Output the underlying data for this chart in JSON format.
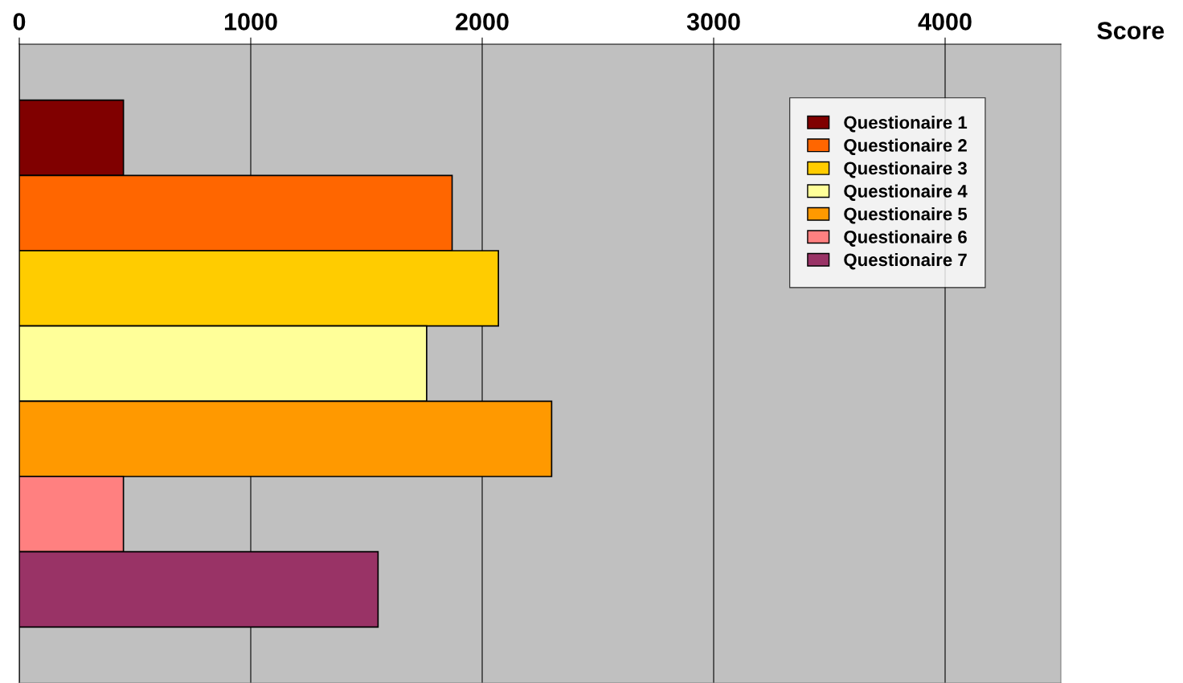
{
  "chart_data": {
    "type": "bar",
    "orientation": "horizontal",
    "xlabel": "Score",
    "categories": [
      null
    ],
    "series": [
      {
        "name": "Questionaire 1",
        "color": "#800000",
        "values": [
          450
        ]
      },
      {
        "name": "Questionaire 2",
        "color": "#ff6600",
        "values": [
          1870
        ]
      },
      {
        "name": "Questionaire 3",
        "color": "#ffcc00",
        "values": [
          2070
        ]
      },
      {
        "name": "Questionaire 4",
        "color": "#ffff99",
        "values": [
          1760
        ]
      },
      {
        "name": "Questionaire 5",
        "color": "#ff9900",
        "values": [
          2300
        ]
      },
      {
        "name": "Questionaire 6",
        "color": "#ff8080",
        "values": [
          450
        ]
      },
      {
        "name": "Questionaire 7",
        "color": "#993366",
        "values": [
          1550
        ]
      }
    ],
    "xlim": [
      0,
      4500
    ],
    "xticks": [
      0,
      1000,
      2000,
      3000,
      4000
    ],
    "grid": "x",
    "legend": "top right",
    "tick_labels": "x"
  }
}
